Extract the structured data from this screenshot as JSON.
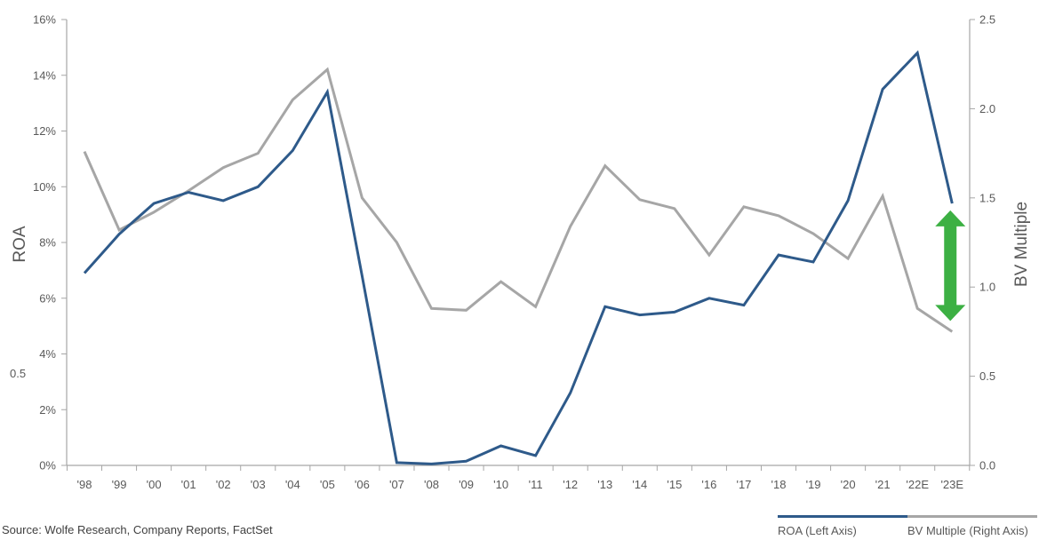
{
  "chart_data": {
    "type": "line",
    "categories": [
      "'98",
      "'99",
      "'00",
      "'01",
      "'02",
      "'03",
      "'04",
      "'05",
      "'06",
      "'07",
      "'08",
      "'09",
      "'10",
      "'11",
      "'12",
      "'13",
      "'14",
      "'15",
      "'16",
      "'17",
      "'18",
      "'19",
      "'20",
      "'21",
      "'22E",
      "'23E"
    ],
    "series": [
      {
        "name": "ROA (Left Axis)",
        "axis": "left",
        "color": "#2e5a8a",
        "values": [
          6.9,
          8.3,
          9.4,
          9.8,
          9.5,
          10.0,
          11.3,
          13.4,
          6.8,
          0.1,
          0.05,
          0.15,
          0.7,
          0.35,
          2.6,
          5.7,
          5.4,
          5.5,
          6.0,
          5.75,
          7.55,
          7.3,
          9.5,
          13.5,
          14.8,
          9.4
        ]
      },
      {
        "name": "BV Multiple (Right Axis)",
        "axis": "right",
        "color": "#a6a6a6",
        "values": [
          1.76,
          1.32,
          1.42,
          1.54,
          1.67,
          1.75,
          2.05,
          2.22,
          1.5,
          1.25,
          0.88,
          0.87,
          1.03,
          0.89,
          1.34,
          1.68,
          1.49,
          1.44,
          1.18,
          1.45,
          1.4,
          1.3,
          1.16,
          1.51,
          0.88,
          0.75
        ]
      }
    ],
    "y_left": {
      "label": "ROA",
      "ticks": [
        "0%",
        "2%",
        "4%",
        "6%",
        "8%",
        "10%",
        "12%",
        "14%",
        "16%"
      ],
      "ylim": [
        0,
        16
      ]
    },
    "y_right": {
      "label": "BV Multiple",
      "ticks": [
        "0.0",
        "0.5",
        "1.0",
        "1.5",
        "2.0",
        "2.5"
      ],
      "ylim": [
        0,
        2.5
      ]
    },
    "annotation": {
      "type": "double-arrow",
      "color": "#3cb043",
      "category": "'23E",
      "from": 0.81,
      "to": 1.43,
      "axis": "right"
    },
    "stray_label": "0.5",
    "grid": false,
    "legend_position": "bottom-right"
  },
  "source": "Source: Wolfe Research, Company Reports, FactSet"
}
